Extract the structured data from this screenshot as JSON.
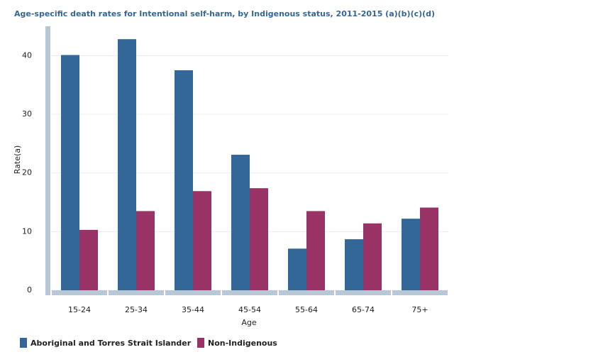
{
  "chart_data": {
    "type": "bar",
    "title": "Age-specific death rates for Intentional self-harm, by Indigenous status, 2011-2015 (a)(b)(c)(d)",
    "x_label": "Age",
    "y_label": "Rate(a)",
    "categories": [
      "15-24",
      "25-34",
      "35-44",
      "45-54",
      "55-64",
      "65-74",
      "75+"
    ],
    "series": [
      {
        "name": "Aboriginal and Torres Strait Islander",
        "color": "#336699",
        "values": [
          40.1,
          42.8,
          37.5,
          23.1,
          7.1,
          8.7,
          12.2
        ]
      },
      {
        "name": "Non-Indigenous",
        "color": "#993366",
        "values": [
          10.3,
          13.5,
          16.9,
          17.4,
          13.5,
          11.4,
          14.1
        ]
      }
    ],
    "ylim": [
      0,
      45
    ],
    "yticks": [
      0,
      10,
      20,
      30,
      40
    ],
    "grid": true,
    "legend": "bottom"
  }
}
